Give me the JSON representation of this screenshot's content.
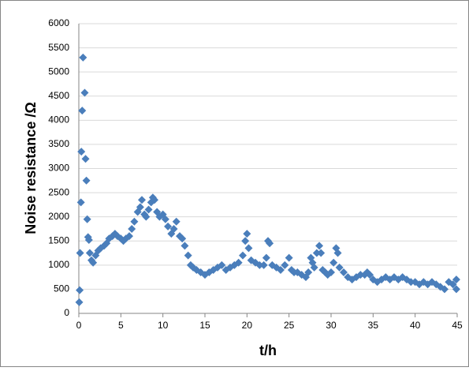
{
  "chart_data": {
    "type": "scatter",
    "y_label": "Noise resistance /Ω",
    "x_label": "t/h",
    "color": "#4a7ebb",
    "grid": true,
    "xlim": [
      0,
      45
    ],
    "xticks": [
      0,
      5,
      10,
      15,
      20,
      25,
      30,
      35,
      40,
      45
    ],
    "ylim": [
      0,
      6000
    ],
    "yticks": [
      0,
      500,
      1000,
      1500,
      2000,
      2500,
      3000,
      3500,
      4000,
      4500,
      5000,
      5500,
      6000
    ],
    "series": [
      {
        "name": "Noise resistance",
        "x": [
          0.05,
          0.1,
          0.15,
          0.25,
          0.3,
          0.4,
          0.5,
          0.7,
          0.8,
          0.9,
          1.0,
          1.1,
          1.2,
          1.3,
          1.5,
          1.7,
          2,
          2.3,
          2.6,
          3,
          3.3,
          3.6,
          4,
          4.3,
          4.6,
          5,
          5.3,
          5.6,
          6,
          6.3,
          6.6,
          7,
          7.3,
          7.5,
          7.8,
          8,
          8.3,
          8.6,
          8.8,
          9,
          9.3,
          9.6,
          10,
          10.3,
          10.6,
          11,
          11.3,
          11.6,
          12,
          12.3,
          12.6,
          13,
          13.3,
          13.6,
          14,
          14.5,
          15,
          15.5,
          16,
          16.5,
          17,
          17.5,
          18,
          18.5,
          19,
          19.5,
          19.8,
          20,
          20.2,
          20.5,
          21,
          21.5,
          22,
          22.3,
          22.5,
          22.7,
          23,
          23.5,
          24,
          24.5,
          25,
          25.3,
          25.6,
          26,
          26.5,
          27,
          27.3,
          27.6,
          27.8,
          28,
          28.3,
          28.6,
          28.8,
          29,
          29.3,
          29.6,
          30,
          30.3,
          30.6,
          30.8,
          31,
          31.5,
          32,
          32.5,
          33,
          33.5,
          34,
          34.3,
          34.6,
          35,
          35.5,
          36,
          36.5,
          37,
          37.5,
          38,
          38.5,
          39,
          39.5,
          40,
          40.5,
          41,
          41.5,
          42,
          42.5,
          43,
          43.5,
          44,
          44.5,
          44.9,
          44.9
        ],
        "values": [
          230,
          480,
          1250,
          2300,
          3350,
          4200,
          5300,
          4570,
          3200,
          2750,
          1950,
          1580,
          1520,
          1250,
          1100,
          1050,
          1200,
          1300,
          1350,
          1400,
          1450,
          1550,
          1600,
          1650,
          1600,
          1550,
          1500,
          1550,
          1600,
          1750,
          1900,
          2100,
          2200,
          2350,
          2050,
          2000,
          2150,
          2300,
          2400,
          2350,
          2100,
          2000,
          2050,
          1950,
          1800,
          1650,
          1750,
          1900,
          1600,
          1550,
          1400,
          1200,
          1000,
          950,
          900,
          850,
          800,
          850,
          900,
          950,
          1000,
          900,
          950,
          1000,
          1050,
          1200,
          1500,
          1650,
          1350,
          1100,
          1050,
          1000,
          1000,
          1150,
          1500,
          1450,
          1000,
          950,
          900,
          1000,
          1150,
          900,
          850,
          850,
          800,
          750,
          850,
          1150,
          1050,
          950,
          1250,
          1400,
          1250,
          900,
          850,
          800,
          850,
          1050,
          1350,
          1250,
          950,
          850,
          750,
          700,
          750,
          800,
          800,
          850,
          800,
          700,
          650,
          700,
          750,
          700,
          750,
          700,
          750,
          700,
          650,
          650,
          600,
          650,
          600,
          650,
          600,
          550,
          500,
          650,
          600,
          700,
          500
        ]
      }
    ]
  }
}
